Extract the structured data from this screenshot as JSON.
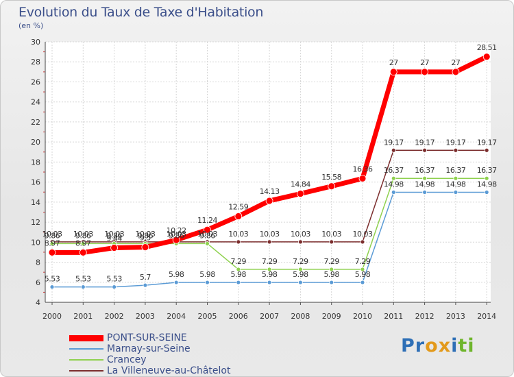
{
  "header": {
    "title": "Evolution du Taux de Taxe d'Habitation",
    "subtitle": "(en %)"
  },
  "logo": {
    "letters": [
      "P",
      "r",
      "o",
      "x",
      "i",
      "t",
      "i"
    ],
    "colors": [
      "#2e6fb6",
      "#2e6fb6",
      "#e39a1c",
      "#e39a1c",
      "#2e6fb6",
      "#6fb52c",
      "#6fb52c"
    ]
  },
  "chart_data": {
    "type": "line",
    "title": "Evolution du Taux de Taxe d'Habitation",
    "ylabel": "(en %)",
    "xlabel": "",
    "x": [
      "2000",
      "2001",
      "2002",
      "2003",
      "2004",
      "2005",
      "2006",
      "2007",
      "2008",
      "2009",
      "2010",
      "2011",
      "2012",
      "2013",
      "2014"
    ],
    "ylim": [
      4,
      30
    ],
    "yticks": [
      4,
      6,
      8,
      10,
      12,
      14,
      16,
      18,
      20,
      22,
      24,
      26,
      28,
      30
    ],
    "grid": true,
    "legend_position": "bottom-left",
    "series": [
      {
        "name": "PONT-SUR-SEINE",
        "color": "#ff0000",
        "values": [
          8.97,
          8.97,
          9.44,
          9.5,
          10.22,
          11.24,
          12.59,
          14.13,
          14.84,
          15.58,
          16.36,
          27,
          27,
          27,
          28.51
        ],
        "labels": [
          "8.97",
          "8.97",
          "9.44",
          "9.5",
          "10.22",
          "11.24",
          "12.59",
          "14.13",
          "14.84",
          "15.58",
          "16.36",
          "27",
          "27",
          "27",
          "28.51"
        ]
      },
      {
        "name": "Marnay-sur-Seine",
        "color": "#5b9bd5",
        "values": [
          5.53,
          5.53,
          5.53,
          5.7,
          5.98,
          5.98,
          5.98,
          5.98,
          5.98,
          5.98,
          5.98,
          14.98,
          14.98,
          14.98,
          14.98
        ],
        "labels": [
          "5.53",
          "5.53",
          "5.53",
          "5.7",
          "5.98",
          "5.98",
          "5.98",
          "5.98",
          "5.98",
          "5.98",
          "5.98",
          "14.98",
          "14.98",
          "14.98",
          "14.98"
        ]
      },
      {
        "name": "Crancey",
        "color": "#8fd14f",
        "values": [
          9.86,
          9.86,
          9.86,
          9.86,
          9.86,
          9.86,
          7.29,
          7.29,
          7.29,
          7.29,
          7.29,
          16.37,
          16.37,
          16.37,
          16.37
        ],
        "labels": [
          "9.86",
          "9.86",
          "9.86",
          "9.86",
          "9.86",
          "9.86",
          "7.29",
          "7.29",
          "7.29",
          "7.29",
          "7.29",
          "16.37",
          "16.37",
          "16.37",
          "16.37"
        ]
      },
      {
        "name": "La Villeneuve-au-Châtelot",
        "color": "#7b2d2d",
        "values": [
          10.03,
          10.03,
          10.03,
          10.03,
          10.03,
          10.03,
          10.03,
          10.03,
          10.03,
          10.03,
          10.03,
          19.17,
          19.17,
          19.17,
          19.17
        ],
        "labels": [
          "10.03",
          "10.03",
          "10.03",
          "10.03",
          "10.03",
          "10.03",
          "10.03",
          "10.03",
          "10.03",
          "10.03",
          "10.03",
          "19.17",
          "19.17",
          "19.17",
          "19.17"
        ]
      }
    ]
  }
}
